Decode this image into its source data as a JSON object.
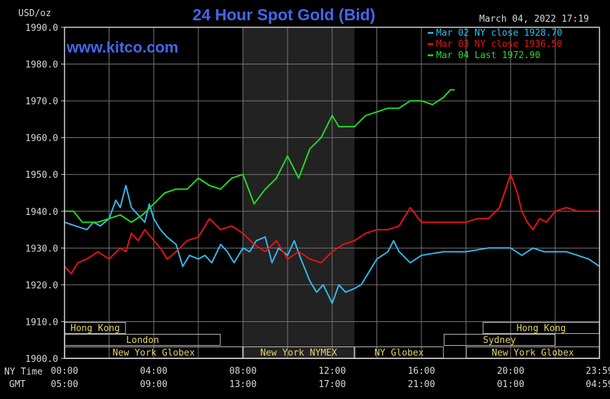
{
  "chart_data": {
    "type": "line",
    "title": "24 Hour Spot Gold (Bid)",
    "unit_label": "USD/oz",
    "timestamp": "March 04, 2022 17:19",
    "watermark": "www.kitco.com",
    "ylim": [
      1900,
      1990
    ],
    "y_ticks": [
      "1990.0",
      "1980.0",
      "1970.0",
      "1960.0",
      "1950.0",
      "1940.0",
      "1930.0",
      "1920.0",
      "1910.0",
      "1900.0"
    ],
    "x_row_ny_label": "NY Time",
    "x_row_gmt_label": "GMT",
    "x_ticks_ny": [
      "00:00",
      "04:00",
      "08:00",
      "12:00",
      "16:00",
      "20:00",
      "23:59"
    ],
    "x_ticks_gmt": [
      "05:00",
      "09:00",
      "13:00",
      "17:00",
      "21:00",
      "01:00",
      "04:59"
    ],
    "grid": true,
    "legend_position": "top-right",
    "colors": {
      "mar02": "#33bbee",
      "mar03": "#ee1111",
      "mar04": "#22dd22",
      "title": "#4466ee",
      "axis": "#d8d8d8",
      "grid": "#777777",
      "shade": "#222222"
    },
    "legend": [
      {
        "key": "mar02",
        "text": "Mar 02 NY close 1928.70"
      },
      {
        "key": "mar03",
        "text": "Mar 03 NY close 1936.50"
      },
      {
        "key": "mar04",
        "text": "Mar 04 Last 1972.90"
      }
    ],
    "sessions": [
      {
        "label": "Hong Kong",
        "start": 0.0,
        "end": 2.75,
        "row": 0
      },
      {
        "label": "London",
        "start": 0.0,
        "end": 7.0,
        "row": 1
      },
      {
        "label": "New York Globex",
        "start": 0.0,
        "end": 8.0,
        "row": 2
      },
      {
        "label": "New York NYMEX",
        "start": 8.0,
        "end": 13.0,
        "row": 2
      },
      {
        "label": "NY Globex",
        "start": 13.0,
        "end": 17.0,
        "row": 2
      },
      {
        "label": "Hong Kong",
        "start": 18.75,
        "end": 23.99,
        "row": 0
      },
      {
        "label": "Sydney",
        "start": 17.0,
        "end": 22.0,
        "row": 1
      },
      {
        "label": "New York Globex",
        "start": 18.0,
        "end": 23.99,
        "row": 2
      }
    ],
    "series": [
      {
        "key": "mar02",
        "name": "Mar 02",
        "x": [
          0,
          0.5,
          1,
          1.3,
          1.6,
          2,
          2.3,
          2.5,
          2.75,
          3,
          3.3,
          3.6,
          3.8,
          4,
          4.3,
          4.6,
          5,
          5.3,
          5.6,
          6,
          6.3,
          6.6,
          7,
          7.3,
          7.6,
          8,
          8.3,
          8.6,
          9,
          9.3,
          9.6,
          10,
          10.3,
          10.6,
          11,
          11.3,
          11.6,
          12,
          12.3,
          12.6,
          13,
          13.3,
          13.6,
          14,
          14.5,
          14.75,
          15,
          15.5,
          16,
          17,
          18,
          19,
          20,
          20.5,
          21,
          21.5,
          22,
          22.5,
          23,
          23.5,
          23.99
        ],
        "y": [
          1937,
          1936,
          1935,
          1937,
          1936,
          1938,
          1943,
          1941,
          1947,
          1941,
          1939,
          1937,
          1942,
          1938,
          1935,
          1933,
          1931,
          1925,
          1928,
          1927,
          1928,
          1926,
          1931,
          1929,
          1926,
          1930,
          1929,
          1932,
          1933,
          1926,
          1930,
          1928,
          1932,
          1927,
          1921,
          1918,
          1920,
          1915,
          1920,
          1918,
          1919,
          1920,
          1923,
          1927,
          1929,
          1932,
          1929,
          1926,
          1928,
          1929,
          1929,
          1930,
          1930,
          1928,
          1930,
          1929,
          1929,
          1929,
          1928,
          1927,
          1925
        ]
      },
      {
        "key": "mar03",
        "name": "Mar 03",
        "x": [
          0,
          0.3,
          0.6,
          1,
          1.5,
          2,
          2.5,
          2.75,
          3,
          3.3,
          3.6,
          4,
          4.3,
          4.6,
          5,
          5.5,
          6,
          6.5,
          7,
          7.5,
          8,
          8.5,
          9,
          9.5,
          10,
          10.5,
          11,
          11.5,
          12,
          12.5,
          13,
          13.5,
          14,
          14.5,
          15,
          15.5,
          16,
          16.5,
          17,
          18,
          18.5,
          19,
          19.5,
          20,
          20.3,
          20.5,
          20.75,
          21,
          21.3,
          21.6,
          22,
          22.5,
          23,
          23.5,
          23.99
        ],
        "y": [
          1925,
          1923,
          1926,
          1927,
          1929,
          1927,
          1930,
          1929,
          1934,
          1932,
          1935,
          1932,
          1930,
          1927,
          1929,
          1932,
          1933,
          1938,
          1935,
          1936,
          1934,
          1931,
          1929,
          1932,
          1927,
          1929,
          1927,
          1926,
          1929,
          1931,
          1932,
          1934,
          1935,
          1935,
          1936,
          1941,
          1937,
          1937,
          1937,
          1937,
          1938,
          1938,
          1941,
          1950,
          1945,
          1940,
          1937,
          1935,
          1938,
          1937,
          1940,
          1941,
          1940,
          1940,
          1940
        ]
      },
      {
        "key": "mar04",
        "name": "Mar 04",
        "x": [
          0,
          0.4,
          0.8,
          1,
          1.5,
          2,
          2.5,
          3,
          3.5,
          4,
          4.5,
          5,
          5.5,
          6,
          6.5,
          7,
          7.5,
          8,
          8.5,
          9,
          9.5,
          10,
          10.5,
          11,
          11.5,
          12,
          12.3,
          12.6,
          13,
          13.5,
          14,
          14.5,
          15,
          15.5,
          16,
          16.5,
          17,
          17.3,
          17.5
        ],
        "y": [
          1940,
          1940,
          1937,
          1937,
          1937,
          1938,
          1939,
          1937,
          1939,
          1942,
          1945,
          1946,
          1946,
          1949,
          1947,
          1946,
          1949,
          1950,
          1942,
          1946,
          1949,
          1955,
          1949,
          1957,
          1960,
          1966,
          1963,
          1963,
          1963,
          1966,
          1967,
          1968,
          1968,
          1970,
          1970,
          1969,
          1971,
          1973,
          1973
        ]
      }
    ]
  }
}
